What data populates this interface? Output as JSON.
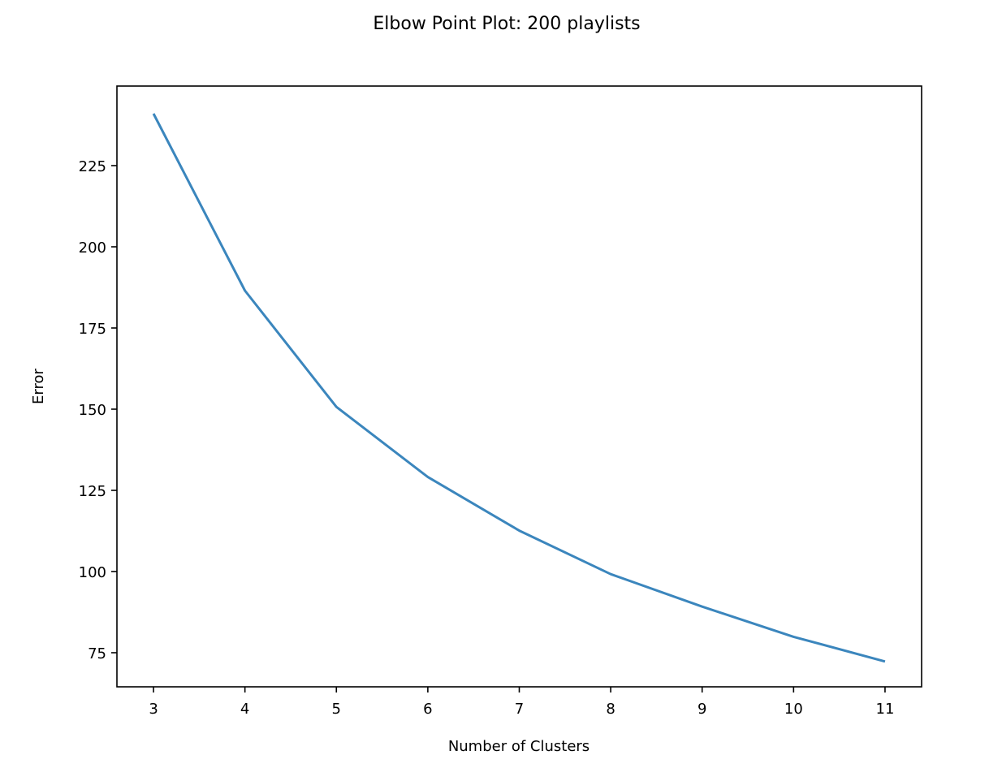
{
  "chart_data": {
    "type": "line",
    "title": "Elbow Point Plot: 200 playlists",
    "xlabel": "Number of Clusters",
    "ylabel": "Error",
    "x": [
      3,
      4,
      5,
      6,
      7,
      8,
      9,
      10,
      11
    ],
    "series": [
      {
        "values": [
          241,
          186.5,
          150.7,
          129.1,
          112.6,
          99.2,
          89.2,
          79.9,
          72.3
        ],
        "color": "#3b86bd"
      }
    ],
    "xlim": [
      2.6,
      11.4
    ],
    "ylim": [
      64.5,
      249.5
    ],
    "xticks": [
      3,
      4,
      5,
      6,
      7,
      8,
      9,
      10,
      11
    ],
    "yticks": [
      75,
      100,
      125,
      150,
      175,
      200,
      225
    ],
    "grid": false,
    "legend": "none"
  }
}
